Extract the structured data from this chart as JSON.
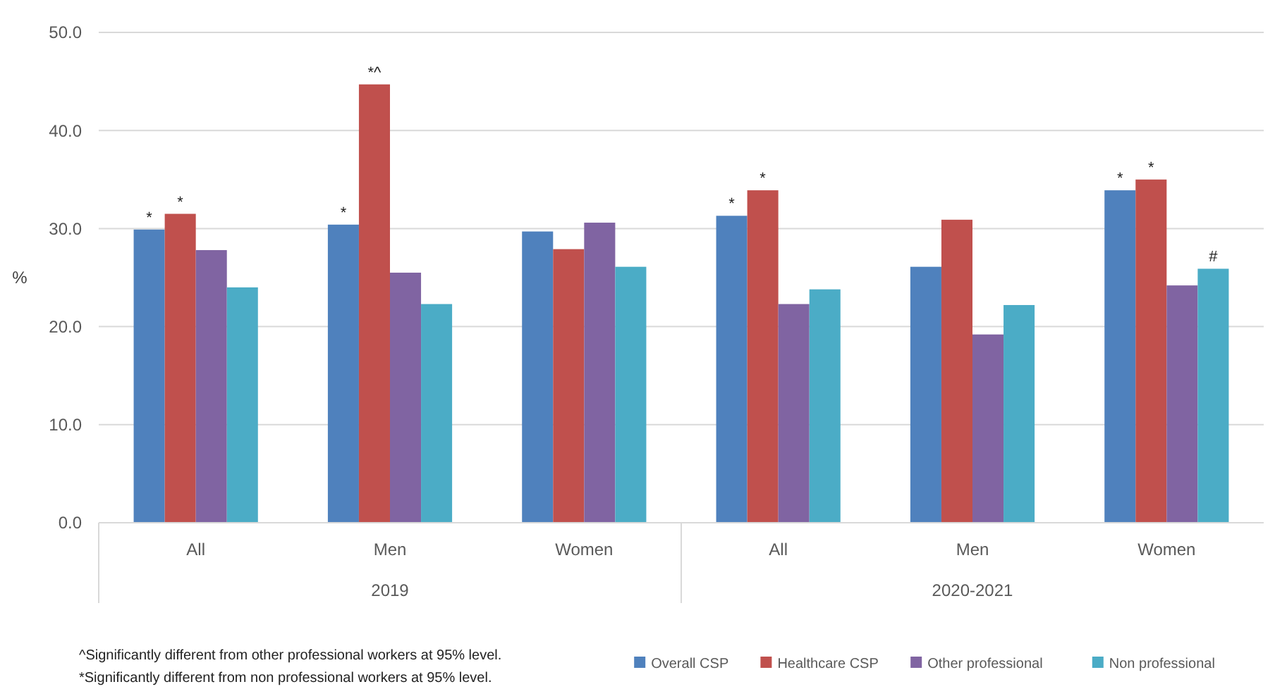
{
  "chart_data": {
    "type": "bar",
    "ylabel": "%",
    "categories": [
      "All",
      "Men",
      "Women",
      "All",
      "Men",
      "Women"
    ],
    "series": [
      {
        "name": "Overall CSP",
        "color": "#4f81bd",
        "values": [
          29.9,
          30.4,
          29.7,
          31.3,
          26.1,
          33.9
        ],
        "value_labels": [
          "*",
          "*",
          null,
          "*",
          null,
          "*"
        ]
      },
      {
        "name": "Healthcare CSP",
        "color": "#c0504d",
        "values": [
          31.5,
          44.7,
          27.9,
          33.9,
          30.9,
          35.0
        ],
        "value_labels": [
          "*",
          "*^",
          null,
          "*",
          null,
          "*"
        ]
      },
      {
        "name": "Other professional",
        "color": "#8064a2",
        "values": [
          27.8,
          25.5,
          30.6,
          22.3,
          19.2,
          24.2
        ]
      },
      {
        "name": "Non professional",
        "color": "#4bacc6",
        "values": [
          24.0,
          22.3,
          26.1,
          23.8,
          22.2,
          25.9
        ],
        "value_labels": [
          null,
          null,
          null,
          null,
          null,
          "#"
        ]
      }
    ],
    "ylim": [
      0,
      50
    ],
    "yticks": [
      {
        "value": 0,
        "label": "0.0"
      },
      {
        "value": 10,
        "label": "10.0"
      },
      {
        "value": 20,
        "label": "20.0"
      },
      {
        "value": 30,
        "label": "30.0"
      },
      {
        "value": 40,
        "label": "40.0"
      },
      {
        "value": 50,
        "label": "50.0"
      }
    ],
    "grid": "y",
    "legend": "bottom right",
    "annotations": [
      "2019",
      "2020-2021",
      "^Significantly different from other professional workers at 95% level.",
      "*Significantly different from non professional workers at 95% level."
    ]
  }
}
